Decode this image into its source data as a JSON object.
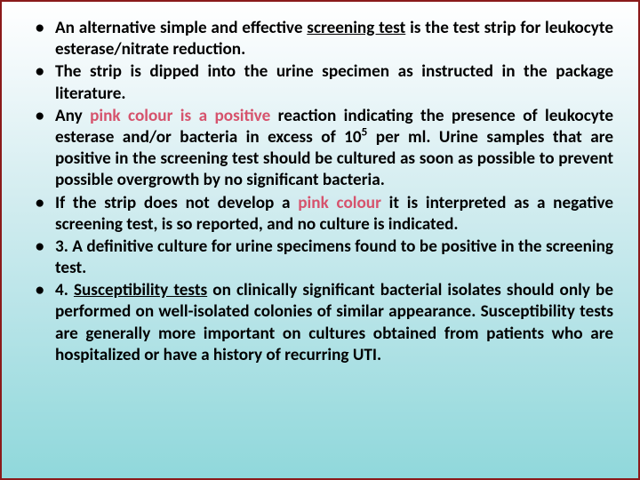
{
  "background_gradient": [
    "#ffffff",
    "#f0f8fa",
    "#d4edf0",
    "#b8e4e8",
    "#a0dde0",
    "#90d8db"
  ],
  "border_color": "#8b1a1a",
  "pink_color": "#d6536d",
  "text_color": "#000000",
  "font_family": "Calibri",
  "font_size_pt": 19.2,
  "font_weight": 700,
  "text_align": "justify",
  "bullets": [
    {
      "runs": [
        {
          "t": "An alternative simple and effective "
        },
        {
          "t": "screening test",
          "u": true
        },
        {
          "t": " is the test strip for leukocyte esterase/nitrate reduction."
        }
      ]
    },
    {
      "runs": [
        {
          "t": "The strip is dipped into the urine specimen as instructed in the package literature."
        }
      ]
    },
    {
      "runs": [
        {
          "t": "Any "
        },
        {
          "t": "pink colour is a positive",
          "pink": true
        },
        {
          "t": " reaction indicating the presence of leukocyte esterase and/or bacteria in excess of 10"
        },
        {
          "t": "5",
          "sup": true
        },
        {
          "t": " per ml. Urine samples that are positive in the screening test should be cultured as soon as possible to prevent possible overgrowth by no significant bacteria."
        }
      ]
    },
    {
      "runs": [
        {
          "t": "If the strip does not develop a "
        },
        {
          "t": "pink colour",
          "pink": true
        },
        {
          "t": " it is interpreted as a negative screening test, is so reported, and no culture is indicated."
        }
      ]
    },
    {
      "runs": [
        {
          "t": "3. A definitive culture for urine specimens found to be positive in the screening test."
        }
      ]
    },
    {
      "runs": [
        {
          "t": "4. "
        },
        {
          "t": "Susceptibility tests",
          "u": true
        },
        {
          "t": " on clinically significant bacterial isolates should only be performed on well-isolated colonies of similar appearance. Susceptibility tests are generally more important on cultures obtained from patients who are hospitalized or have a history of recurring UTI."
        }
      ]
    }
  ]
}
